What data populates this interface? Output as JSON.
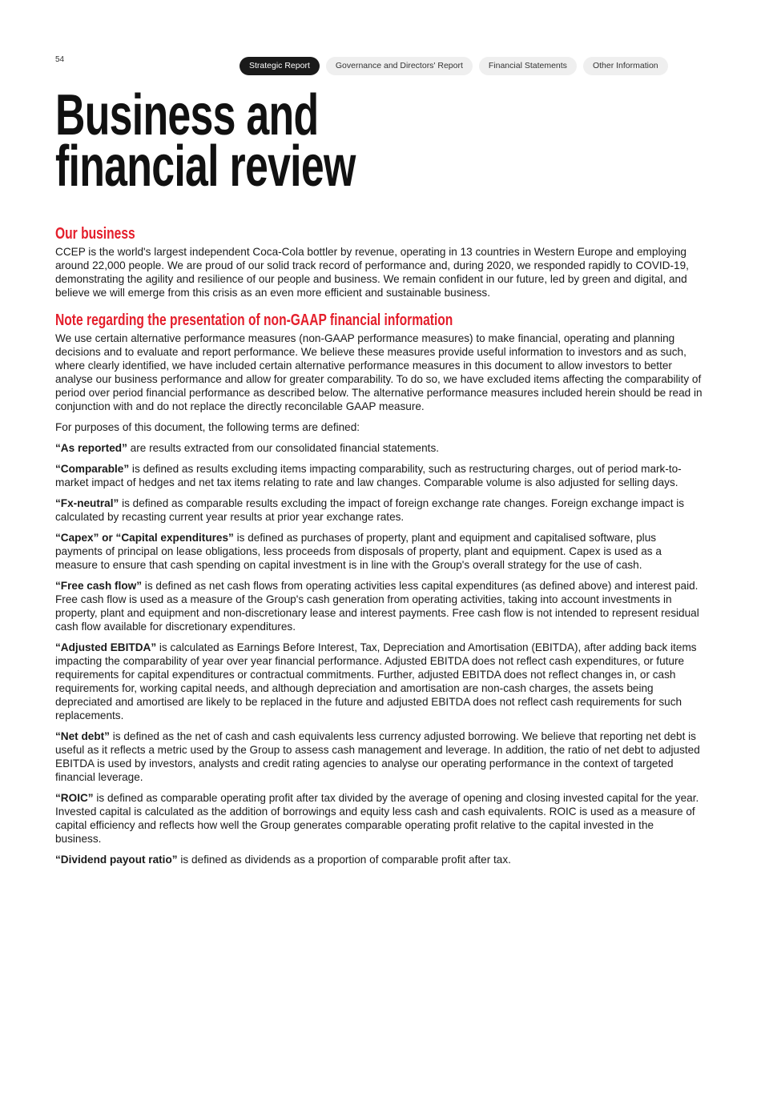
{
  "page_number": "54",
  "nav": {
    "tabs": [
      {
        "label": "Strategic Report",
        "active": true
      },
      {
        "label": "Governance and Directors' Report",
        "active": false
      },
      {
        "label": "Financial Statements",
        "active": false
      },
      {
        "label": "Other Information",
        "active": false
      }
    ]
  },
  "title_line1": "Business and",
  "title_line2": "financial review",
  "accent_color": "#e41e2b",
  "our_business": {
    "heading": "Our business",
    "text": "CCEP is the world's largest independent Coca-Cola bottler by revenue, operating in 13 countries in Western Europe and employing around 22,000 people. We are proud of our solid track record of performance and, during 2020, we responded rapidly to COVID-19, demonstrating the agility and resilience of our people and business. We remain confident in our future, led by green and digital, and believe we will emerge from this crisis as an even more efficient and sustainable business."
  },
  "non_gaap": {
    "heading": "Note regarding the presentation of non-GAAP financial information",
    "intro": "We use certain alternative performance measures (non-GAAP performance measures) to make financial, operating and planning decisions and to evaluate and report performance. We believe these measures provide useful information to investors and as such, where clearly identified, we have included certain alternative performance measures in this document to allow investors to better analyse our business performance and allow for greater comparability. To do so, we have excluded items affecting the comparability of period over period financial performance as described below. The alternative performance measures included herein should be read in conjunction with and do not replace the directly reconcilable GAAP measure.",
    "terms_intro": "For purposes of this document, the following terms are defined:",
    "definitions": [
      {
        "term": "“As reported”",
        "text": " are results extracted from our consolidated financial statements."
      },
      {
        "term": "“Comparable”",
        "text": " is defined as results excluding items impacting comparability, such as restructuring charges, out of period mark-to-market impact of hedges and net tax items relating to rate and law changes. Comparable volume is also adjusted for selling days."
      },
      {
        "term": "“Fx-neutral”",
        "text": " is defined as comparable results excluding the impact of foreign exchange rate changes. Foreign exchange impact is calculated by recasting current year results at prior year exchange rates."
      },
      {
        "term": "“Capex” or “Capital expenditures”",
        "text": " is defined as purchases of property, plant and equipment and capitalised software, plus payments of principal on lease obligations, less proceeds from disposals of property, plant and equipment. Capex is used as a measure to ensure that cash spending on capital investment is in line with the Group's overall strategy for the use of cash."
      },
      {
        "term": "“Free cash flow”",
        "text": " is defined as net cash flows from operating activities less capital expenditures (as defined above) and interest paid. Free cash flow is used as a measure of the Group's cash generation from operating activities, taking into account investments in property, plant and equipment and non-discretionary lease and interest payments. Free cash flow is not intended to represent residual cash flow available for discretionary expenditures."
      },
      {
        "term": "“Adjusted EBITDA”",
        "text": " is calculated as Earnings Before Interest, Tax, Depreciation and Amortisation (EBITDA), after adding back items impacting the comparability of year over year financial performance. Adjusted EBITDA does not reflect cash expenditures, or future requirements for capital expenditures or contractual commitments. Further, adjusted EBITDA does not reflect changes in, or cash requirements for, working capital needs, and although depreciation and amortisation are non-cash charges, the assets being depreciated and amortised are likely to be replaced in the future and adjusted EBITDA does not reflect cash requirements for such replacements."
      },
      {
        "term": "“Net debt”",
        "text": " is defined as the net of cash and cash equivalents less currency adjusted borrowing. We believe that reporting net debt is useful as it reflects a metric used by the Group to assess cash management and leverage. In addition, the ratio of net debt to adjusted EBITDA is used by investors, analysts and credit rating agencies to analyse our operating performance in the context of targeted financial leverage."
      },
      {
        "term": "“ROIC”",
        "text": " is defined as comparable operating profit after tax divided by the average of opening and closing invested capital for the year. Invested capital is calculated as the addition of borrowings and equity less cash and cash equivalents. ROIC is used as a measure of capital efficiency and reflects how well the Group generates comparable operating profit relative to the capital invested in the business."
      },
      {
        "term": "“Dividend payout ratio”",
        "text": " is defined as dividends as a proportion of comparable profit after tax."
      }
    ]
  }
}
